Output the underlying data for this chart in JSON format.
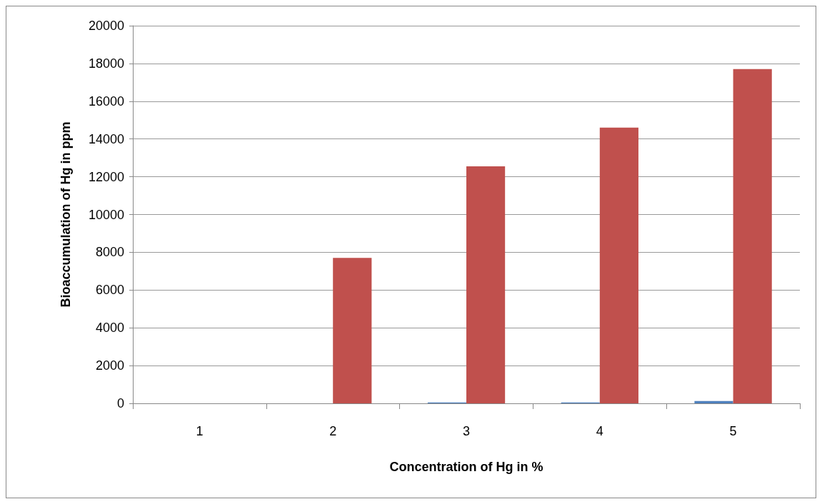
{
  "chart_data": {
    "type": "bar",
    "xlabel": "Concentration of Hg in %",
    "ylabel": "Bioaccumulation of Hg in ppm",
    "categories": [
      "1",
      "2",
      "3",
      "4",
      "5"
    ],
    "series": [
      {
        "color": "#4f81bd",
        "values": [
          0,
          0,
          50,
          50,
          120
        ]
      },
      {
        "color": "#c0504d",
        "values": [
          0,
          7700,
          12550,
          14600,
          17700
        ]
      }
    ],
    "ylim": [
      0,
      20000
    ],
    "yticks": [
      0,
      2000,
      4000,
      6000,
      8000,
      10000,
      12000,
      14000,
      16000,
      18000,
      20000
    ],
    "grid": "y"
  }
}
